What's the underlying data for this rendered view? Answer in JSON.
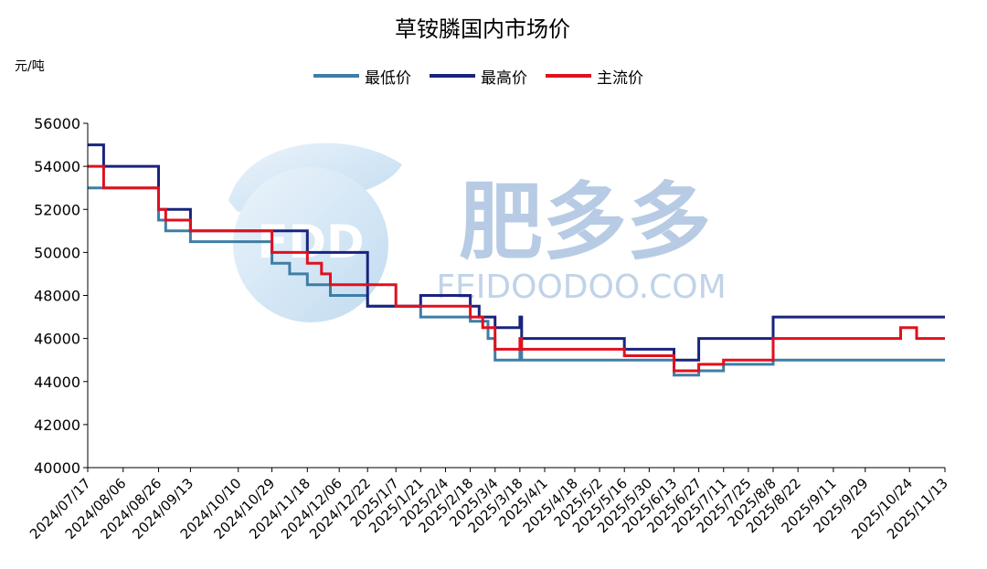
{
  "chart_data": {
    "type": "line",
    "title": "草铵膦国内市场价",
    "unit_label": "元/吨",
    "watermark": {
      "brand": "FDD",
      "cn": "肥多多",
      "en": "FEIDOODOO.COM"
    },
    "ylim": [
      40000,
      56000
    ],
    "yticks": [
      "40000",
      "42000",
      "44000",
      "46000",
      "48000",
      "50000",
      "52000",
      "54000",
      "56000"
    ],
    "xlim": [
      "2024/07/17",
      "2025/11/13"
    ],
    "xticks": [
      "2024/07/17",
      "2024/08/06",
      "2024/08/26",
      "2024/09/13",
      "2024/10/10",
      "2024/10/29",
      "2024/11/18",
      "2024/12/06",
      "2024/12/22",
      "2025/1/7",
      "2025/1/21",
      "2025/2/4",
      "2025/2/18",
      "2025/3/4",
      "2025/3/18",
      "2025/4/1",
      "2025/4/18",
      "2025/5/2",
      "2025/5/16",
      "2025/5/30",
      "2025/6/13",
      "2025/6/27",
      "2025/7/11",
      "2025/7/25",
      "2025/8/8",
      "2025/8/22",
      "2025/9/11",
      "2025/9/29",
      "2025/10/24",
      "2025/11/13"
    ],
    "legend_position": "top",
    "grid": false,
    "series": [
      {
        "name": "最低价",
        "color": "#3e7ea6",
        "points": [
          [
            "2024/07/17",
            53000
          ],
          [
            "2024/08/26",
            51500
          ],
          [
            "2024/08/30",
            51000
          ],
          [
            "2024/09/13",
            50500
          ],
          [
            "2024/10/29",
            49500
          ],
          [
            "2024/11/08",
            49000
          ],
          [
            "2024/11/18",
            48500
          ],
          [
            "2024/12/01",
            48000
          ],
          [
            "2024/12/22",
            47500
          ],
          [
            "2025/1/21",
            47000
          ],
          [
            "2025/2/18",
            46800
          ],
          [
            "2025/2/28",
            46000
          ],
          [
            "2025/3/4",
            45000
          ],
          [
            "2025/3/18",
            45500
          ],
          [
            "2025/3/19",
            45000
          ],
          [
            "2025/6/13",
            44300
          ],
          [
            "2025/6/27",
            44500
          ],
          [
            "2025/7/11",
            44800
          ],
          [
            "2025/8/8",
            45000
          ]
        ]
      },
      {
        "name": "最高价",
        "color": "#1a237e",
        "points": [
          [
            "2024/07/17",
            55000
          ],
          [
            "2024/07/26",
            54000
          ],
          [
            "2024/08/26",
            52000
          ],
          [
            "2024/09/13",
            51000
          ],
          [
            "2024/11/18",
            50000
          ],
          [
            "2024/12/22",
            47500
          ],
          [
            "2025/1/21",
            48000
          ],
          [
            "2025/2/18",
            47500
          ],
          [
            "2025/2/23",
            47000
          ],
          [
            "2025/3/4",
            46500
          ],
          [
            "2025/3/18",
            47000
          ],
          [
            "2025/3/19",
            46000
          ],
          [
            "2025/5/16",
            45500
          ],
          [
            "2025/6/13",
            45000
          ],
          [
            "2025/6/27",
            46000
          ],
          [
            "2025/8/8",
            47000
          ]
        ]
      },
      {
        "name": "主流价",
        "color": "#e0101e",
        "points": [
          [
            "2024/07/17",
            54000
          ],
          [
            "2024/07/26",
            53000
          ],
          [
            "2024/08/26",
            52000
          ],
          [
            "2024/08/30",
            51500
          ],
          [
            "2024/09/13",
            51000
          ],
          [
            "2024/10/29",
            50000
          ],
          [
            "2024/11/18",
            49500
          ],
          [
            "2024/11/26",
            49000
          ],
          [
            "2024/12/01",
            48500
          ],
          [
            "2025/1/7",
            47500
          ],
          [
            "2025/2/18",
            47000
          ],
          [
            "2025/2/25",
            46500
          ],
          [
            "2025/3/4",
            45500
          ],
          [
            "2025/3/18",
            46000
          ],
          [
            "2025/3/19",
            45500
          ],
          [
            "2025/5/16",
            45200
          ],
          [
            "2025/6/13",
            44500
          ],
          [
            "2025/6/27",
            44800
          ],
          [
            "2025/7/11",
            45000
          ],
          [
            "2025/8/8",
            46000
          ],
          [
            "2025/10/19",
            46500
          ],
          [
            "2025/10/28",
            46000
          ]
        ]
      }
    ]
  }
}
